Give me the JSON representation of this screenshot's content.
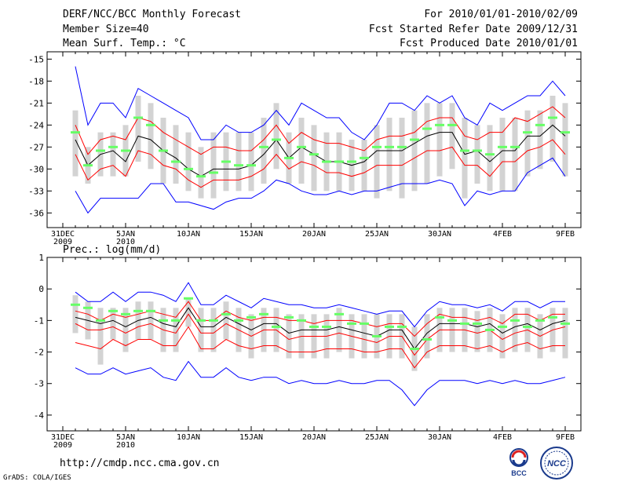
{
  "header": {
    "title": "DERF/NCC/BCC Monthly Forecast",
    "member_size": "Member Size=40",
    "variable": "Mean Surf. Temp.: °C",
    "for_range": "For 2010/01/01-2010/02/09",
    "started": "Fcst Started Refer Date 2009/12/31",
    "produced": "Fcst Produced Date 2010/01/01"
  },
  "precip_title": "Prec.: log(mm/d)",
  "footer_url": "http://cmdp.ncc.cma.gov.cn",
  "grads_credit": "GrADS: COLA/IGES",
  "logos": {
    "bcc": "BCC",
    "ncc": "NCC"
  },
  "colors": {
    "max_min": "#0000ff",
    "spread": "#ff0000",
    "mean": "#000000",
    "obs": "#66ff66",
    "box": "#d3d3d3"
  },
  "chart_data": [
    {
      "type": "line",
      "title": "Mean Surf. Temp.: °C",
      "x_labels": [
        "31DEC\n2009",
        "5JAN\n2010",
        "10JAN",
        "15JAN",
        "20JAN",
        "25JAN",
        "30JAN",
        "4FEB",
        "9FEB"
      ],
      "x_label_days": [
        0,
        5,
        10,
        15,
        20,
        25,
        30,
        35,
        40
      ],
      "ylim": [
        -38,
        -14
      ],
      "yticks": [
        -15,
        -18,
        -21,
        -24,
        -27,
        -30,
        -33,
        -36
      ],
      "ytick_labels": [
        "-15",
        "-18",
        "-21",
        "-24",
        "-27",
        "-30",
        "-33",
        "-36"
      ],
      "days": [
        1,
        2,
        3,
        4,
        5,
        6,
        7,
        8,
        9,
        10,
        11,
        12,
        13,
        14,
        15,
        16,
        17,
        18,
        19,
        20,
        21,
        22,
        23,
        24,
        25,
        26,
        27,
        28,
        29,
        30,
        31,
        32,
        33,
        34,
        35,
        36,
        37,
        38,
        39,
        40
      ],
      "series": [
        {
          "name": "max",
          "values": [
            -16,
            -24,
            -21,
            -21,
            -23,
            -19,
            -20,
            -21,
            -22,
            -23,
            -26,
            -26,
            -24,
            -25,
            -25,
            -24,
            -22,
            -24,
            -21,
            -22,
            -23,
            -23,
            -25,
            -26,
            -24,
            -21,
            -21,
            -22,
            -20,
            -21,
            -20,
            -23,
            -24,
            -21,
            -22,
            -21,
            -20,
            -20,
            -18,
            -20
          ]
        },
        {
          "name": "upper",
          "values": [
            -24,
            -28,
            -26,
            -25.5,
            -26,
            -23,
            -23.5,
            -25,
            -26,
            -27,
            -28,
            -27,
            -27,
            -27.5,
            -27.5,
            -26,
            -24,
            -26.5,
            -25,
            -26,
            -26.5,
            -26.5,
            -27,
            -27.5,
            -26,
            -25.5,
            -25.5,
            -25,
            -23.5,
            -23,
            -23,
            -25.5,
            -26,
            -25,
            -25,
            -23,
            -23.5,
            -22.5,
            -21.5,
            -23
          ]
        },
        {
          "name": "mean",
          "values": [
            -26,
            -29.5,
            -28,
            -27.5,
            -29,
            -25.5,
            -26,
            -27.5,
            -28.5,
            -30,
            -31,
            -30,
            -30,
            -30,
            -29.5,
            -28,
            -26,
            -28.5,
            -27,
            -28,
            -29,
            -29,
            -29.5,
            -29,
            -27.5,
            -27.5,
            -27.5,
            -26.5,
            -25.5,
            -25,
            -25,
            -28,
            -27.5,
            -29,
            -27.5,
            -27.5,
            -25.5,
            -25.5,
            -24,
            -25.5
          ]
        },
        {
          "name": "lower",
          "values": [
            -28,
            -31.5,
            -30,
            -29.5,
            -31,
            -27.5,
            -28,
            -29.5,
            -30,
            -31.5,
            -32.5,
            -31.5,
            -31.5,
            -31.5,
            -31,
            -30,
            -28,
            -30,
            -29,
            -29.5,
            -30.5,
            -30.5,
            -31,
            -30.5,
            -29.5,
            -29.5,
            -29.5,
            -28.5,
            -27.5,
            -27.5,
            -27,
            -29.5,
            -29.5,
            -31,
            -29,
            -29,
            -27.5,
            -27,
            -26,
            -28
          ]
        },
        {
          "name": "min",
          "values": [
            -33,
            -36,
            -34,
            -34,
            -34,
            -34,
            -32,
            -32,
            -34.5,
            -34.5,
            -35,
            -35.5,
            -34.5,
            -34,
            -34,
            -33,
            -31.5,
            -32,
            -33,
            -33.5,
            -33.5,
            -33,
            -33.5,
            -33,
            -33,
            -32.5,
            -32,
            -32,
            -32,
            -31.5,
            -32,
            -35,
            -33,
            -33.5,
            -33,
            -33,
            -30.5,
            -29.5,
            -28.5,
            -31
          ]
        },
        {
          "name": "obs",
          "values": [
            -25,
            -29.5,
            -27.5,
            -27,
            -27.5,
            -23,
            -24,
            -27.5,
            -29,
            -30,
            -31,
            -30.5,
            -29,
            -29.5,
            -29.5,
            -27,
            -26,
            -28.5,
            -27,
            -28,
            -29,
            -29,
            -29,
            -28.5,
            -27,
            -27,
            -27,
            -26,
            -24.5,
            -24,
            -24,
            -27.5,
            -27.5,
            -28,
            -27,
            -27,
            -25,
            -24,
            -23,
            -25
          ]
        }
      ],
      "boxes": {
        "top": [
          -22,
          -27,
          -25,
          -25,
          -24,
          -20,
          -21,
          -23,
          -24,
          -25,
          -27,
          -25,
          -25,
          -25,
          -25,
          -23,
          -21,
          -25,
          -23,
          -24,
          -25,
          -25,
          -26,
          -26,
          -24,
          -23,
          -23,
          -22,
          -21,
          -21,
          -21,
          -23,
          -24,
          -24,
          -23,
          -23,
          -22,
          -22,
          -20,
          -21
        ],
        "bottom": [
          -31,
          -32,
          -31,
          -31,
          -31,
          -29,
          -30,
          -32,
          -32,
          -33,
          -34,
          -34,
          -33,
          -33,
          -33,
          -32,
          -30,
          -32,
          -32,
          -33,
          -33,
          -33,
          -33,
          -33,
          -34,
          -33,
          -34,
          -33,
          -32,
          -31,
          -30,
          -34,
          -32,
          -33,
          -33,
          -33,
          -31,
          -30,
          -29,
          -31
        ]
      }
    },
    {
      "type": "line",
      "title": "Prec.: log(mm/d)",
      "x_labels": [
        "31DEC\n2009",
        "5JAN\n2010",
        "10JAN",
        "15JAN",
        "20JAN",
        "25JAN",
        "30JAN",
        "4FEB",
        "9FEB"
      ],
      "x_label_days": [
        0,
        5,
        10,
        15,
        20,
        25,
        30,
        35,
        40
      ],
      "ylim": [
        -4.5,
        1
      ],
      "yticks": [
        1,
        0,
        -1,
        -2,
        -3,
        -4
      ],
      "ytick_labels": [
        "1",
        "0",
        "-1",
        "-2",
        "-3",
        "-4"
      ],
      "days": [
        1,
        2,
        3,
        4,
        5,
        6,
        7,
        8,
        9,
        10,
        11,
        12,
        13,
        14,
        15,
        16,
        17,
        18,
        19,
        20,
        21,
        22,
        23,
        24,
        25,
        26,
        27,
        28,
        29,
        30,
        31,
        32,
        33,
        34,
        35,
        36,
        37,
        38,
        39,
        40
      ],
      "series": [
        {
          "name": "max",
          "values": [
            -0.1,
            -0.4,
            -0.4,
            -0.1,
            -0.4,
            -0.1,
            -0.1,
            -0.2,
            -0.4,
            0.2,
            -0.5,
            -0.5,
            -0.2,
            -0.4,
            -0.6,
            -0.3,
            -0.4,
            -0.5,
            -0.5,
            -0.6,
            -0.6,
            -0.5,
            -0.6,
            -0.7,
            -0.8,
            -0.7,
            -0.7,
            -1.2,
            -0.7,
            -0.4,
            -0.5,
            -0.5,
            -0.6,
            -0.5,
            -0.7,
            -0.4,
            -0.4,
            -0.6,
            -0.4,
            -0.4
          ]
        },
        {
          "name": "upper",
          "values": [
            -0.7,
            -0.8,
            -1.0,
            -0.8,
            -0.9,
            -0.8,
            -0.7,
            -0.8,
            -0.9,
            -0.4,
            -1.0,
            -1.0,
            -0.7,
            -0.9,
            -1.0,
            -0.9,
            -0.9,
            -1.0,
            -1.0,
            -1.1,
            -1.0,
            -1.0,
            -1.0,
            -1.1,
            -1.2,
            -1.1,
            -1.1,
            -1.5,
            -1.1,
            -0.8,
            -0.9,
            -0.9,
            -1.0,
            -0.9,
            -1.1,
            -0.8,
            -0.8,
            -1.0,
            -0.8,
            -0.8
          ]
        },
        {
          "name": "mean",
          "values": [
            -0.9,
            -1.0,
            -1.1,
            -1.0,
            -1.2,
            -1.0,
            -0.9,
            -1.1,
            -1.2,
            -0.6,
            -1.2,
            -1.2,
            -0.9,
            -1.1,
            -1.3,
            -1.1,
            -1.1,
            -1.4,
            -1.3,
            -1.3,
            -1.3,
            -1.2,
            -1.3,
            -1.4,
            -1.5,
            -1.3,
            -1.3,
            -1.9,
            -1.4,
            -1.1,
            -1.1,
            -1.1,
            -1.2,
            -1.1,
            -1.4,
            -1.2,
            -1.1,
            -1.3,
            -1.1,
            -1.0
          ]
        },
        {
          "name": "lower",
          "values": [
            -1.1,
            -1.3,
            -1.3,
            -1.2,
            -1.4,
            -1.2,
            -1.1,
            -1.3,
            -1.4,
            -0.8,
            -1.4,
            -1.4,
            -1.1,
            -1.3,
            -1.5,
            -1.3,
            -1.3,
            -1.6,
            -1.5,
            -1.5,
            -1.5,
            -1.4,
            -1.5,
            -1.6,
            -1.7,
            -1.5,
            -1.5,
            -2.1,
            -1.6,
            -1.3,
            -1.3,
            -1.3,
            -1.4,
            -1.3,
            -1.6,
            -1.4,
            -1.3,
            -1.5,
            -1.3,
            -1.2
          ]
        },
        {
          "name": "lower2",
          "values": [
            -1.7,
            -1.8,
            -1.9,
            -1.6,
            -1.8,
            -1.6,
            -1.6,
            -1.8,
            -1.8,
            -1.2,
            -1.9,
            -1.9,
            -1.6,
            -1.8,
            -1.9,
            -1.8,
            -1.8,
            -2.0,
            -2.0,
            -2.0,
            -1.9,
            -1.9,
            -1.9,
            -2.0,
            -2.0,
            -1.9,
            -1.9,
            -2.5,
            -2.0,
            -1.8,
            -1.8,
            -1.8,
            -1.9,
            -1.8,
            -2.0,
            -1.8,
            -1.7,
            -1.9,
            -1.8,
            -1.8
          ]
        },
        {
          "name": "min",
          "values": [
            -2.5,
            -2.7,
            -2.7,
            -2.5,
            -2.7,
            -2.6,
            -2.5,
            -2.8,
            -2.9,
            -2.3,
            -2.8,
            -2.8,
            -2.5,
            -2.8,
            -2.9,
            -2.8,
            -2.8,
            -3.0,
            -2.9,
            -3.0,
            -3.0,
            -2.9,
            -3.0,
            -3.0,
            -2.9,
            -2.9,
            -3.2,
            -3.7,
            -3.2,
            -2.9,
            -2.9,
            -2.9,
            -3.0,
            -2.9,
            -3.0,
            -2.9,
            -3.0,
            -3.0,
            -2.9,
            -2.8
          ]
        },
        {
          "name": "obs",
          "values": [
            -0.5,
            -0.6,
            -1.0,
            -0.7,
            -0.8,
            -0.7,
            -0.7,
            -1.0,
            -1.0,
            -0.3,
            -1.0,
            -1.0,
            -0.8,
            -1.0,
            -0.9,
            -0.8,
            -1.2,
            -0.9,
            -1.0,
            -1.2,
            -1.2,
            -0.8,
            -1.1,
            -1.1,
            -1.5,
            -1.2,
            -1.2,
            -1.9,
            -1.6,
            -0.9,
            -1.0,
            -1.1,
            -1.1,
            -1.3,
            -1.2,
            -1.0,
            -1.2,
            -1.0,
            -0.9,
            -1.1
          ]
        }
      ],
      "boxes": {
        "top": [
          -0.2,
          -0.4,
          -0.6,
          -0.6,
          -0.6,
          -0.4,
          -0.4,
          -0.6,
          -0.6,
          -0.3,
          -0.6,
          -0.6,
          -0.4,
          -0.6,
          -0.8,
          -0.6,
          -0.6,
          -0.8,
          -0.8,
          -0.8,
          -0.8,
          -0.6,
          -0.8,
          -0.8,
          -0.8,
          -0.8,
          -0.8,
          -1.2,
          -0.8,
          -0.6,
          -0.6,
          -0.6,
          -0.7,
          -0.6,
          -0.8,
          -0.6,
          -0.6,
          -0.8,
          -0.6,
          -0.6
        ],
        "bottom": [
          -1.4,
          -1.6,
          -2.4,
          -1.6,
          -2.0,
          -1.6,
          -1.6,
          -2.0,
          -2.0,
          -1.2,
          -2.0,
          -2.0,
          -1.6,
          -2.0,
          -2.2,
          -2.0,
          -2.0,
          -2.2,
          -2.2,
          -2.2,
          -2.2,
          -2.0,
          -2.2,
          -2.2,
          -2.2,
          -2.2,
          -2.2,
          -2.6,
          -2.2,
          -2.0,
          -2.0,
          -2.0,
          -2.0,
          -2.0,
          -2.2,
          -2.0,
          -2.0,
          -2.2,
          -2.0,
          -2.2
        ]
      }
    }
  ]
}
